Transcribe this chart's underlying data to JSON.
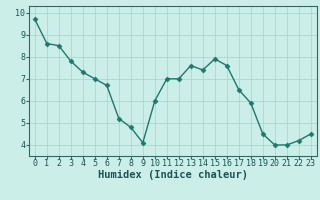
{
  "x": [
    0,
    1,
    2,
    3,
    4,
    5,
    6,
    7,
    8,
    9,
    10,
    11,
    12,
    13,
    14,
    15,
    16,
    17,
    18,
    19,
    20,
    21,
    22,
    23
  ],
  "y": [
    9.7,
    8.6,
    8.5,
    7.8,
    7.3,
    7.0,
    6.7,
    5.2,
    4.8,
    4.1,
    6.0,
    7.0,
    7.0,
    7.6,
    7.4,
    7.9,
    7.6,
    6.5,
    5.9,
    4.5,
    4.0,
    4.0,
    4.2,
    4.5
  ],
  "line_color": "#1a7a6e",
  "marker": "D",
  "marker_size": 2.5,
  "line_width": 1.0,
  "bg_color": "#cceee8",
  "grid_color": "#aad8d0",
  "xlabel": "Humidex (Indice chaleur)",
  "xlabel_fontsize": 7.5,
  "tick_fontsize": 6,
  "xlim": [
    -0.5,
    23.5
  ],
  "ylim": [
    3.5,
    10.3
  ],
  "yticks": [
    4,
    5,
    6,
    7,
    8,
    9,
    10
  ],
  "xticks": [
    0,
    1,
    2,
    3,
    4,
    5,
    6,
    7,
    8,
    9,
    10,
    11,
    12,
    13,
    14,
    15,
    16,
    17,
    18,
    19,
    20,
    21,
    22,
    23
  ],
  "spine_color": "#336666",
  "text_color": "#1a5555"
}
